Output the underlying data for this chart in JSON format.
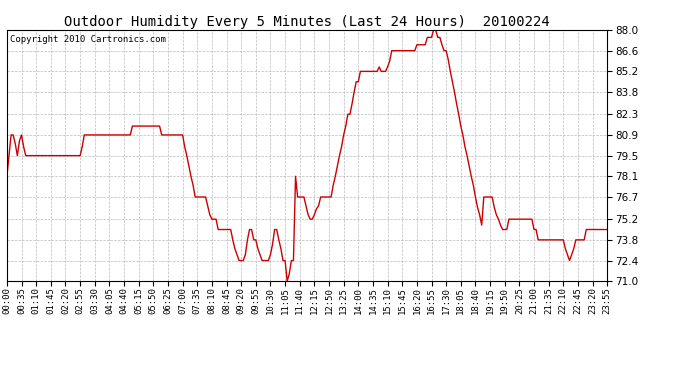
{
  "title": "Outdoor Humidity Every 5 Minutes (Last 24 Hours)  20100224",
  "copyright": "Copyright 2010 Cartronics.com",
  "line_color": "#cc0000",
  "bg_color": "#ffffff",
  "grid_color": "#aaaaaa",
  "ylim": [
    71.0,
    88.0
  ],
  "yticks": [
    71.0,
    72.4,
    73.8,
    75.2,
    76.7,
    78.1,
    79.5,
    80.9,
    82.3,
    83.8,
    85.2,
    86.6,
    88.0
  ],
  "x_labels": [
    "00:00",
    "00:35",
    "01:10",
    "01:45",
    "02:20",
    "02:55",
    "03:30",
    "04:05",
    "04:40",
    "05:15",
    "05:50",
    "06:25",
    "07:00",
    "07:35",
    "08:10",
    "08:45",
    "09:20",
    "09:55",
    "10:30",
    "11:05",
    "11:40",
    "12:15",
    "12:50",
    "13:25",
    "14:00",
    "14:35",
    "15:10",
    "15:45",
    "16:20",
    "16:55",
    "17:30",
    "18:05",
    "18:40",
    "19:15",
    "19:50",
    "20:25",
    "21:00",
    "21:35",
    "22:10",
    "22:45",
    "23:20",
    "23:55"
  ],
  "humidity": [
    78.1,
    79.5,
    80.9,
    80.9,
    80.3,
    79.5,
    80.5,
    80.9,
    80.1,
    79.5,
    79.5,
    79.5,
    79.5,
    79.5,
    79.5,
    79.5,
    79.5,
    79.5,
    79.5,
    79.5,
    79.5,
    79.5,
    79.5,
    79.5,
    79.5,
    79.5,
    79.5,
    79.5,
    79.5,
    79.5,
    79.5,
    79.5,
    79.5,
    79.5,
    79.5,
    79.5,
    80.1,
    80.9,
    80.9,
    80.9,
    80.9,
    80.9,
    80.9,
    80.9,
    80.9,
    80.9,
    80.9,
    80.9,
    80.9,
    80.9,
    80.9,
    80.9,
    80.9,
    80.9,
    80.9,
    80.9,
    80.9,
    80.9,
    80.9,
    80.9,
    81.5,
    81.5,
    81.5,
    81.5,
    81.5,
    81.5,
    81.5,
    81.5,
    81.5,
    81.5,
    81.5,
    81.5,
    81.5,
    81.5,
    80.9,
    80.9,
    80.9,
    80.9,
    80.9,
    80.9,
    80.9,
    80.9,
    80.9,
    80.9,
    80.9,
    80.1,
    79.5,
    78.8,
    78.1,
    77.5,
    76.7,
    76.7,
    76.7,
    76.7,
    76.7,
    76.7,
    76.1,
    75.5,
    75.2,
    75.2,
    75.2,
    74.5,
    74.5,
    74.5,
    74.5,
    74.5,
    74.5,
    74.5,
    73.8,
    73.2,
    72.8,
    72.4,
    72.4,
    72.4,
    72.8,
    73.8,
    74.5,
    74.5,
    73.8,
    73.8,
    73.2,
    72.8,
    72.4,
    72.4,
    72.4,
    72.4,
    72.8,
    73.5,
    74.5,
    74.5,
    73.8,
    73.2,
    72.4,
    72.4,
    71.0,
    71.5,
    72.4,
    72.4,
    78.1,
    76.7,
    76.7,
    76.7,
    76.7,
    76.1,
    75.5,
    75.2,
    75.2,
    75.5,
    75.9,
    76.1,
    76.7,
    76.7,
    76.7,
    76.7,
    76.7,
    76.7,
    77.5,
    78.1,
    78.8,
    79.5,
    80.1,
    80.9,
    81.5,
    82.3,
    82.3,
    83.0,
    83.8,
    84.5,
    84.5,
    85.2,
    85.2,
    85.2,
    85.2,
    85.2,
    85.2,
    85.2,
    85.2,
    85.2,
    85.5,
    85.2,
    85.2,
    85.2,
    85.5,
    85.9,
    86.6,
    86.6,
    86.6,
    86.6,
    86.6,
    86.6,
    86.6,
    86.6,
    86.6,
    86.6,
    86.6,
    86.6,
    87.0,
    87.0,
    87.0,
    87.0,
    87.0,
    87.5,
    87.5,
    87.5,
    88.0,
    88.0,
    87.5,
    87.5,
    87.0,
    86.6,
    86.6,
    86.0,
    85.2,
    84.5,
    83.8,
    83.0,
    82.3,
    81.5,
    80.9,
    80.1,
    79.5,
    78.8,
    78.1,
    77.5,
    76.7,
    76.0,
    75.5,
    74.8,
    76.7,
    76.7,
    76.7,
    76.7,
    76.7,
    76.0,
    75.5,
    75.2,
    74.8,
    74.5,
    74.5,
    74.5,
    75.2,
    75.2,
    75.2,
    75.2,
    75.2,
    75.2,
    75.2,
    75.2,
    75.2,
    75.2,
    75.2,
    75.2,
    74.5,
    74.5,
    73.8,
    73.8,
    73.8,
    73.8,
    73.8,
    73.8,
    73.8,
    73.8,
    73.8,
    73.8,
    73.8,
    73.8,
    73.8,
    73.2,
    72.8,
    72.4,
    72.8,
    73.2,
    73.8,
    73.8,
    73.8,
    73.8,
    73.8,
    74.5,
    74.5,
    74.5,
    74.5,
    74.5,
    74.5,
    74.5,
    74.5,
    74.5,
    74.5,
    74.5
  ]
}
